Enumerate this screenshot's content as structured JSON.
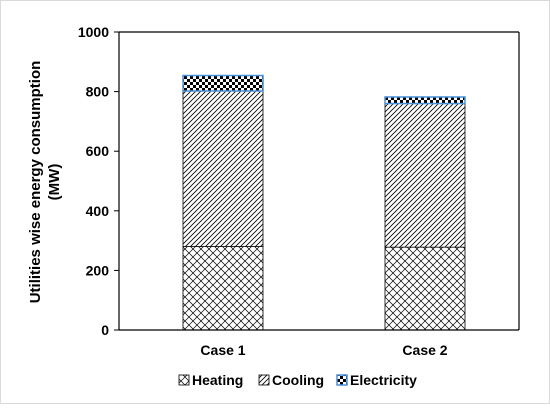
{
  "chart_data": {
    "type": "bar",
    "stacked": true,
    "categories": [
      "Case 1",
      "Case 2"
    ],
    "series": [
      {
        "name": "Heating",
        "values": [
          280,
          278
        ],
        "pattern": "crosshatch"
      },
      {
        "name": "Cooling",
        "values": [
          522,
          482
        ],
        "pattern": "diagonal"
      },
      {
        "name": "Electricity",
        "values": [
          52,
          22
        ],
        "pattern": "checker",
        "border_color": "#4a90d9"
      }
    ],
    "ylabel_lines": [
      "Utilities wise energy consumption",
      "(MW)"
    ],
    "xlabel": "",
    "ylim": [
      0,
      1000
    ],
    "yticks": [
      "0",
      "200",
      "400",
      "600",
      "800",
      "1000"
    ],
    "grid": false,
    "legend_position": "bottom"
  }
}
